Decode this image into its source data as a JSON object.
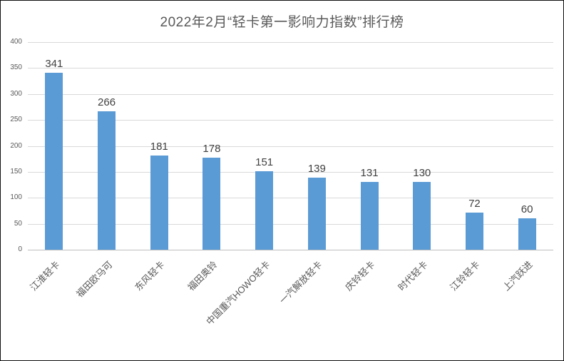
{
  "window": {
    "title": "2022年2月“轻卡第一影响力指数”排行榜"
  },
  "colors": {
    "bar": "#5b9bd5",
    "gridline": "#d9d9d9",
    "axis_line": "#bfbfbf",
    "title_text": "#595959",
    "tick_text": "#595959",
    "data_label_text": "#404040",
    "background": "#ffffff",
    "border": "#101010"
  },
  "chart_data": {
    "type": "bar",
    "title": "2022年2月“轻卡第一影响力指数”排行榜",
    "categories": [
      "江淮轻卡",
      "福田欧马可",
      "东风轻卡",
      "福田奥铃",
      "中国重汽HOWO轻卡",
      "一汽解放轻卡",
      "庆铃轻卡",
      "时代轻卡",
      "江铃轻卡",
      "上汽跃进"
    ],
    "values": [
      341,
      266,
      181,
      178,
      151,
      139,
      131,
      130,
      72,
      60
    ],
    "data_labels": true,
    "xlabel": "",
    "ylabel": "",
    "ylim": [
      0,
      400
    ],
    "yticks": [
      0,
      50,
      100,
      150,
      200,
      250,
      300,
      350,
      400
    ],
    "grid": true,
    "legend": "none",
    "category_label_rotation_deg": 45
  }
}
